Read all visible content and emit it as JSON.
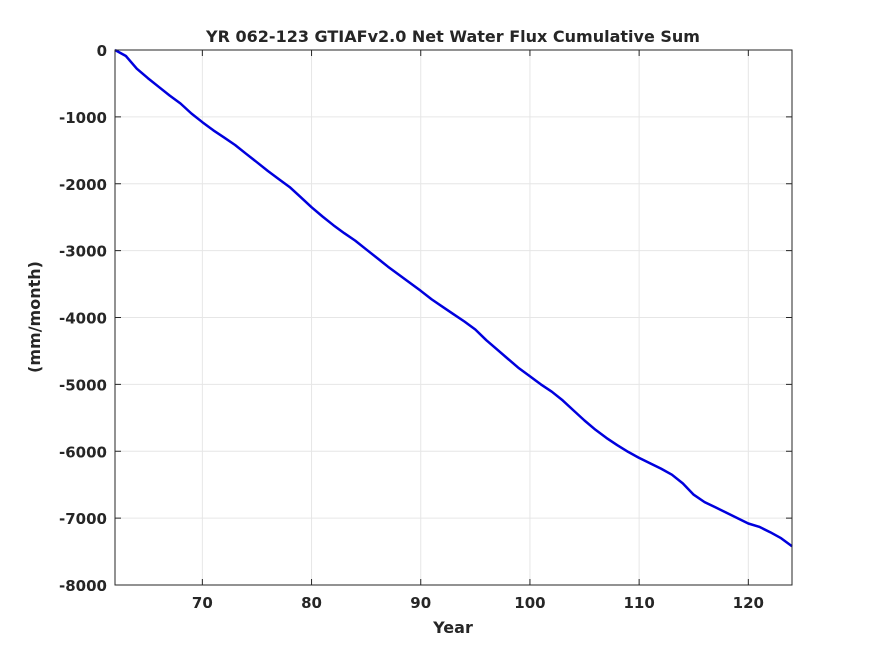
{
  "chart_data": {
    "type": "line",
    "title": "YR 062-123 GTIAFv2.0 Net Water Flux Cumulative Sum",
    "xlabel": "Year",
    "ylabel": "(mm/month)",
    "xlim": [
      62,
      124
    ],
    "ylim": [
      -8000,
      0
    ],
    "xticks": [
      70,
      80,
      90,
      100,
      110,
      120
    ],
    "yticks": [
      0,
      -1000,
      -2000,
      -3000,
      -4000,
      -5000,
      -6000,
      -7000,
      -8000
    ],
    "grid": true,
    "line_color": "#0000dd",
    "series": [
      {
        "x": [
          62,
          63,
          64,
          65,
          66,
          67,
          68,
          69,
          70,
          71,
          72,
          73,
          74,
          75,
          76,
          77,
          78,
          79,
          80,
          81,
          82,
          83,
          84,
          85,
          86,
          87,
          88,
          89,
          90,
          91,
          92,
          93,
          94,
          95,
          96,
          97,
          98,
          99,
          100,
          101,
          102,
          103,
          104,
          105,
          106,
          107,
          108,
          109,
          110,
          111,
          112,
          113,
          114,
          115,
          116,
          117,
          118,
          119,
          120,
          121,
          122,
          123,
          124
        ],
        "y": [
          0,
          -90,
          -280,
          -420,
          -550,
          -680,
          -800,
          -950,
          -1080,
          -1200,
          -1310,
          -1420,
          -1550,
          -1680,
          -1810,
          -1930,
          -2050,
          -2200,
          -2350,
          -2490,
          -2620,
          -2740,
          -2850,
          -2980,
          -3110,
          -3240,
          -3360,
          -3480,
          -3600,
          -3730,
          -3840,
          -3950,
          -4060,
          -4180,
          -4340,
          -4480,
          -4620,
          -4760,
          -4880,
          -5000,
          -5110,
          -5240,
          -5390,
          -5540,
          -5680,
          -5800,
          -5910,
          -6010,
          -6100,
          -6180,
          -6260,
          -6350,
          -6480,
          -6650,
          -6760,
          -6840,
          -6920,
          -7000,
          -7080,
          -7130,
          -7210,
          -7300,
          -7420
        ]
      }
    ]
  }
}
